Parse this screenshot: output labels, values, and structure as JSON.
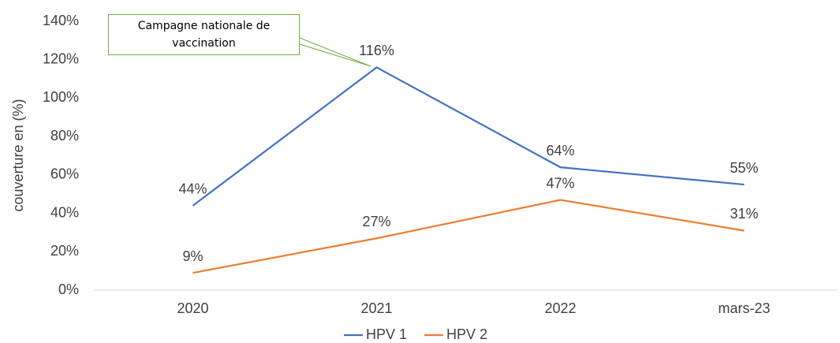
{
  "chart_data": {
    "type": "line",
    "y_axis_label": "couverture en (%)",
    "annotation": "Campagne nationale de vaccination",
    "categories": [
      "2020",
      "2021",
      "2022",
      "mars-23"
    ],
    "series": [
      {
        "name": "HPV 1",
        "color": "#4472c4",
        "values": [
          44,
          116,
          64,
          55
        ],
        "value_labels": [
          "44%",
          "116%",
          "64%",
          "55%"
        ]
      },
      {
        "name": "HPV 2",
        "color": "#ed7d31",
        "values": [
          9,
          27,
          47,
          31
        ],
        "value_labels": [
          "9%",
          "27%",
          "47%",
          "31%"
        ]
      }
    ],
    "ylim": [
      0,
      140
    ],
    "yticks": [
      {
        "value": 0,
        "label": "0%"
      },
      {
        "value": 20,
        "label": "20%"
      },
      {
        "value": 40,
        "label": "40%"
      },
      {
        "value": 60,
        "label": "60%"
      },
      {
        "value": 80,
        "label": "80%"
      },
      {
        "value": 100,
        "label": "100%"
      },
      {
        "value": 120,
        "label": "120%"
      },
      {
        "value": 140,
        "label": "140%"
      }
    ],
    "grid": false
  }
}
